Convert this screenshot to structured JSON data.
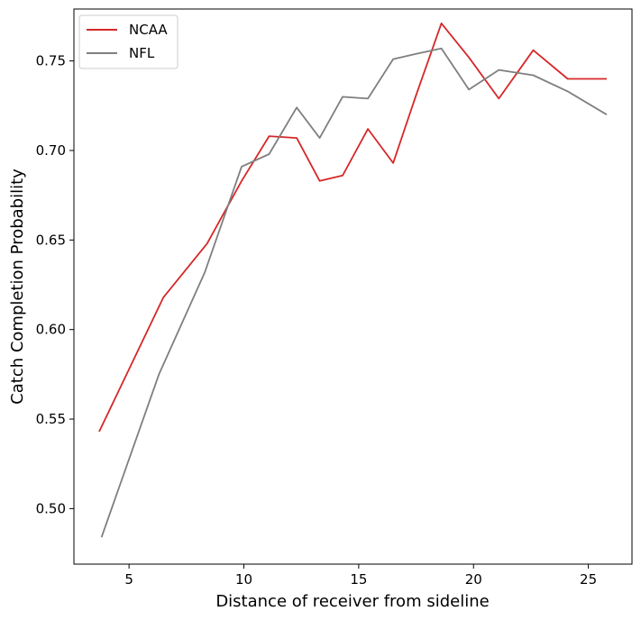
{
  "chart_data": {
    "type": "line",
    "title": "",
    "xlabel": "Distance of receiver from sideline",
    "ylabel": "Catch Completion Probability",
    "xlim": [
      2.6,
      26.9
    ],
    "ylim": [
      0.469,
      0.779
    ],
    "xticks": [
      5,
      10,
      15,
      20,
      25
    ],
    "xtick_labels": [
      "5",
      "10",
      "15",
      "20",
      "25"
    ],
    "yticks": [
      0.5,
      0.55,
      0.6,
      0.65,
      0.7,
      0.75
    ],
    "ytick_labels": [
      "0.50",
      "0.55",
      "0.60",
      "0.65",
      "0.70",
      "0.75"
    ],
    "grid": false,
    "legend_position": "top-left",
    "series": [
      {
        "name": "NCAA",
        "color": "#d62728",
        "x": [
          3.7,
          6.5,
          8.4,
          9.9,
          11.1,
          12.3,
          13.3,
          14.3,
          15.4,
          16.5,
          17.5,
          18.6,
          19.8,
          21.1,
          22.6,
          24.1,
          25.8
        ],
        "y": [
          0.543,
          0.618,
          0.648,
          0.683,
          0.708,
          0.707,
          0.683,
          0.686,
          0.712,
          0.693,
          0.731,
          0.771,
          0.752,
          0.729,
          0.756,
          0.74,
          0.74
        ]
      },
      {
        "name": "NFL",
        "color": "#7f7f7f",
        "x": [
          3.8,
          6.3,
          8.3,
          9.9,
          11.1,
          12.3,
          13.3,
          14.3,
          15.4,
          16.5,
          17.5,
          18.6,
          19.8,
          21.1,
          22.6,
          24.1,
          25.8
        ],
        "y": [
          0.484,
          0.575,
          0.632,
          0.691,
          0.698,
          0.724,
          0.707,
          0.73,
          0.729,
          0.751,
          0.754,
          0.757,
          0.734,
          0.745,
          0.742,
          0.733,
          0.72
        ]
      }
    ]
  }
}
